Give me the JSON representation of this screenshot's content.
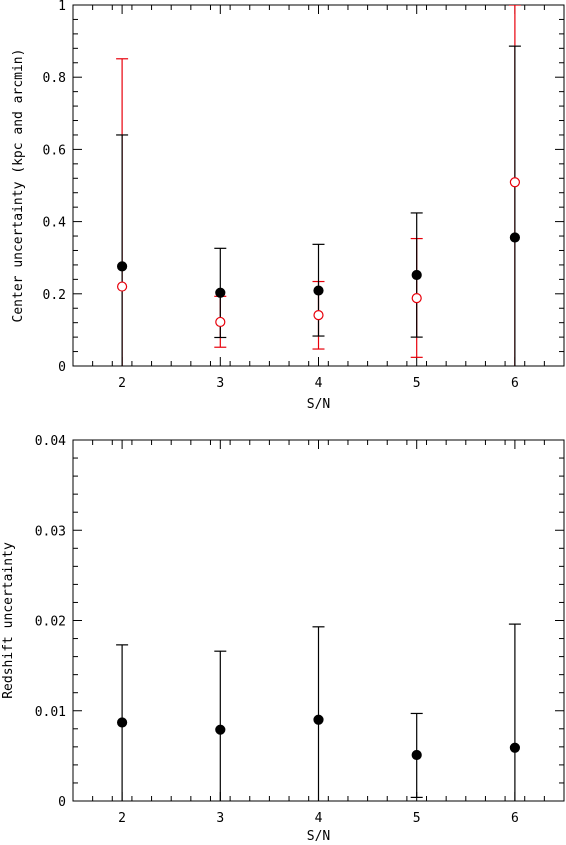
{
  "chart_data": [
    {
      "type": "scatter",
      "xlabel": "S/N",
      "ylabel": "Center uncertainty (kpc and arcmin)",
      "xlim": [
        1.5,
        6.5
      ],
      "ylim": [
        0,
        1
      ],
      "xticks": [
        2,
        3,
        4,
        5,
        6
      ],
      "xtick_labels": [
        "2",
        "3",
        "4",
        "5",
        "6"
      ],
      "yticks": [
        0,
        0.2,
        0.4,
        0.6,
        0.8,
        1
      ],
      "ytick_labels": [
        "0",
        "0.2",
        "0.4",
        "0.6",
        "0.8",
        "1"
      ],
      "grid": false,
      "series": [
        {
          "marker": "filled-circle",
          "color": "#000000",
          "x": [
            2,
            3,
            4,
            5,
            6
          ],
          "y": [
            0.276,
            0.203,
            0.209,
            0.252,
            0.356
          ],
          "err_low": [
            0,
            0.079,
            0.083,
            0.08,
            0
          ],
          "err_high": [
            0.64,
            0.326,
            0.337,
            0.424,
            0.886
          ]
        },
        {
          "marker": "open-circle",
          "color": "#e8000b",
          "x": [
            2,
            3,
            4,
            5,
            6
          ],
          "y": [
            0.22,
            0.122,
            0.141,
            0.188,
            0.509
          ],
          "err_low": [
            0,
            0.052,
            0.047,
            0.024,
            0
          ],
          "err_high": [
            0.851,
            0.193,
            0.234,
            0.353,
            1.0
          ]
        }
      ]
    },
    {
      "type": "scatter",
      "xlabel": "S/N",
      "ylabel": "Redshift uncertainty",
      "xlim": [
        1.5,
        6.5
      ],
      "ylim": [
        0,
        0.04
      ],
      "xticks": [
        2,
        3,
        4,
        5,
        6
      ],
      "xtick_labels": [
        "2",
        "3",
        "4",
        "5",
        "6"
      ],
      "yticks": [
        0,
        0.01,
        0.02,
        0.03,
        0.04
      ],
      "ytick_labels": [
        "0",
        "0.01",
        "0.02",
        "0.03",
        "0.04"
      ],
      "grid": false,
      "series": [
        {
          "marker": "filled-circle",
          "color": "#000000",
          "x": [
            2,
            3,
            4,
            5,
            6
          ],
          "y": [
            0.0087,
            0.0079,
            0.009,
            0.0051,
            0.0059
          ],
          "err_low": [
            0,
            0,
            0,
            0.0004,
            0
          ],
          "err_high": [
            0.0173,
            0.0166,
            0.0193,
            0.0097,
            0.0196
          ]
        }
      ]
    }
  ]
}
